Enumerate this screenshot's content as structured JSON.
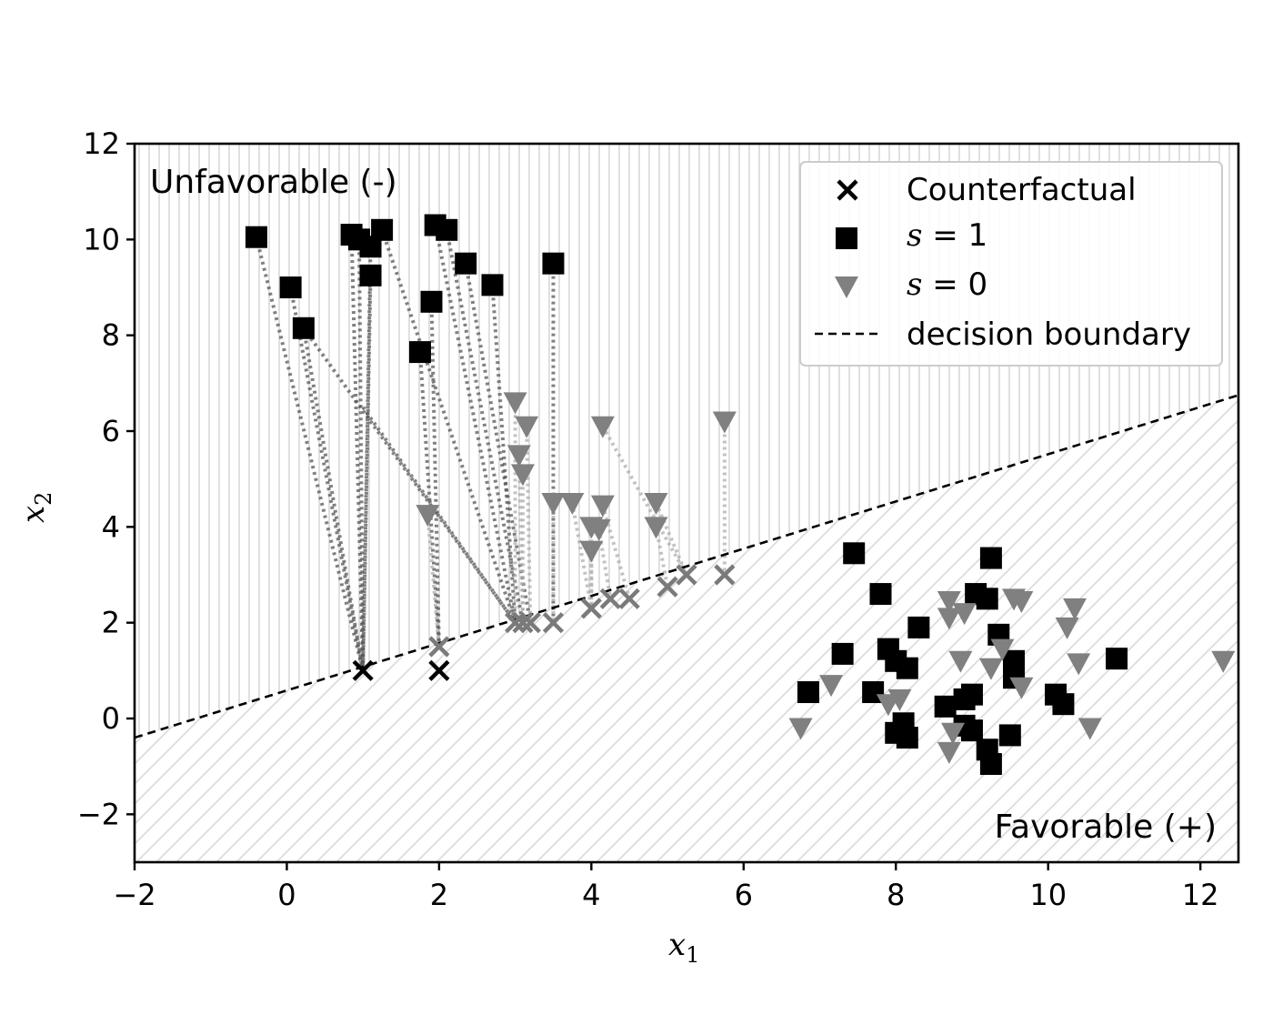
{
  "chart_data": {
    "type": "scatter",
    "xlabel": "x",
    "xlabel_sub": "1",
    "ylabel": "x",
    "ylabel_sub": "2",
    "xlim": [
      -2,
      12.5
    ],
    "ylim": [
      -3,
      12
    ],
    "xticks": [
      -2,
      0,
      2,
      4,
      6,
      8,
      10,
      12
    ],
    "yticks": [
      -2,
      0,
      2,
      4,
      6,
      8,
      10,
      12
    ],
    "xtick_labels": [
      "−2",
      "0",
      "2",
      "4",
      "6",
      "8",
      "10",
      "12"
    ],
    "ytick_labels": [
      "−2",
      "0",
      "2",
      "4",
      "6",
      "8",
      "10",
      "12"
    ],
    "grid": false,
    "legend_position": "top-right",
    "region_labels": {
      "unfavorable": "Unfavorable (-)",
      "favorable": "Favorable (+)"
    },
    "decision_boundary": {
      "name": "decision boundary",
      "x": [
        -2,
        12.5
      ],
      "y": [
        -0.4,
        6.75
      ]
    },
    "legend": [
      {
        "marker": "x",
        "text": "Counterfactual"
      },
      {
        "marker": "square",
        "text_pre": "s",
        "text_post": " = 1"
      },
      {
        "marker": "triangle",
        "text_pre": "s",
        "text_post": " = 0"
      },
      {
        "marker": "dashed",
        "text": "decision boundary"
      }
    ],
    "colors": {
      "s1": "#000000",
      "s0": "#808080",
      "boundary": "#000000",
      "hatch": "#d9d9d9"
    },
    "series": [
      {
        "name": "s = 1",
        "marker": "square",
        "points": [
          [
            -0.4,
            10.05
          ],
          [
            0.05,
            9.0
          ],
          [
            0.22,
            8.15
          ],
          [
            0.85,
            10.1
          ],
          [
            0.95,
            10.0
          ],
          [
            1.1,
            9.85
          ],
          [
            1.25,
            10.2
          ],
          [
            1.1,
            9.25
          ],
          [
            1.95,
            10.3
          ],
          [
            2.1,
            10.2
          ],
          [
            2.35,
            9.5
          ],
          [
            2.7,
            9.05
          ],
          [
            3.5,
            9.5
          ],
          [
            1.9,
            8.7
          ],
          [
            1.75,
            7.65
          ],
          [
            7.45,
            3.45
          ],
          [
            7.8,
            2.6
          ],
          [
            6.85,
            0.55
          ],
          [
            7.3,
            1.35
          ],
          [
            7.7,
            0.55
          ],
          [
            7.9,
            1.45
          ],
          [
            8.0,
            1.2
          ],
          [
            8.15,
            1.05
          ],
          [
            8.3,
            1.9
          ],
          [
            8.0,
            -0.3
          ],
          [
            8.15,
            -0.4
          ],
          [
            8.1,
            -0.1
          ],
          [
            8.65,
            0.25
          ],
          [
            8.9,
            0.4
          ],
          [
            9.0,
            0.5
          ],
          [
            8.9,
            -0.15
          ],
          [
            9.0,
            -0.25
          ],
          [
            9.05,
            2.6
          ],
          [
            9.2,
            2.5
          ],
          [
            9.25,
            3.35
          ],
          [
            9.2,
            -0.65
          ],
          [
            9.25,
            -0.95
          ],
          [
            9.35,
            1.75
          ],
          [
            9.55,
            1.2
          ],
          [
            9.55,
            0.85
          ],
          [
            9.5,
            -0.35
          ],
          [
            10.1,
            0.5
          ],
          [
            10.2,
            0.3
          ],
          [
            10.9,
            1.25
          ]
        ]
      },
      {
        "name": "s = 0",
        "marker": "triangle",
        "points": [
          [
            3.0,
            6.6
          ],
          [
            3.15,
            6.1
          ],
          [
            3.05,
            5.5
          ],
          [
            3.1,
            5.1
          ],
          [
            3.5,
            4.5
          ],
          [
            3.75,
            4.5
          ],
          [
            4.15,
            6.1
          ],
          [
            1.85,
            4.25
          ],
          [
            4.0,
            4.0
          ],
          [
            4.1,
            3.95
          ],
          [
            4.15,
            4.45
          ],
          [
            4.0,
            3.5
          ],
          [
            4.85,
            4.5
          ],
          [
            4.85,
            4.0
          ],
          [
            5.75,
            6.2
          ],
          [
            6.75,
            -0.2
          ],
          [
            7.15,
            0.7
          ],
          [
            7.9,
            0.3
          ],
          [
            8.05,
            0.4
          ],
          [
            8.7,
            2.45
          ],
          [
            8.7,
            2.1
          ],
          [
            8.9,
            2.2
          ],
          [
            8.75,
            -0.3
          ],
          [
            8.7,
            -0.7
          ],
          [
            8.85,
            1.2
          ],
          [
            9.25,
            1.05
          ],
          [
            9.4,
            1.45
          ],
          [
            9.55,
            2.5
          ],
          [
            9.65,
            2.45
          ],
          [
            9.65,
            0.65
          ],
          [
            10.25,
            1.9
          ],
          [
            10.35,
            2.3
          ],
          [
            10.4,
            1.15
          ],
          [
            10.55,
            -0.2
          ],
          [
            12.3,
            1.2
          ]
        ]
      },
      {
        "name": "Counterfactual",
        "marker": "x",
        "points": [
          [
            1.0,
            1.0
          ],
          [
            2.0,
            1.0
          ],
          [
            2.0,
            1.5
          ],
          [
            3.0,
            2.0
          ],
          [
            3.1,
            2.0
          ],
          [
            3.2,
            2.0
          ],
          [
            3.5,
            2.0
          ],
          [
            4.0,
            2.3
          ],
          [
            4.25,
            2.5
          ],
          [
            4.5,
            2.5
          ],
          [
            5.0,
            2.75
          ],
          [
            5.25,
            3.0
          ],
          [
            5.75,
            3.0
          ]
        ]
      }
    ],
    "paths": [
      {
        "group": "s1",
        "from": [
          -0.4,
          10.05
        ],
        "to": [
          1.0,
          1.0
        ]
      },
      {
        "group": "s1",
        "from": [
          0.05,
          9.0
        ],
        "to": [
          1.0,
          1.0
        ]
      },
      {
        "group": "s1",
        "from": [
          0.22,
          8.15
        ],
        "to": [
          1.0,
          1.0
        ]
      },
      {
        "group": "s1",
        "from": [
          0.22,
          8.15
        ],
        "to": [
          3.0,
          2.0
        ]
      },
      {
        "group": "s1",
        "from": [
          0.85,
          10.1
        ],
        "to": [
          1.0,
          1.0
        ]
      },
      {
        "group": "s1",
        "from": [
          0.95,
          10.0
        ],
        "to": [
          1.0,
          1.0
        ]
      },
      {
        "group": "s1",
        "from": [
          1.1,
          9.85
        ],
        "to": [
          1.0,
          1.0
        ]
      },
      {
        "group": "s1",
        "from": [
          1.1,
          9.25
        ],
        "to": [
          1.0,
          1.0
        ]
      },
      {
        "group": "s1",
        "from": [
          1.25,
          10.2
        ],
        "to": [
          3.0,
          2.0
        ]
      },
      {
        "group": "s1",
        "from": [
          1.95,
          10.3
        ],
        "to": [
          3.0,
          2.0
        ]
      },
      {
        "group": "s1",
        "from": [
          2.1,
          10.2
        ],
        "to": [
          3.1,
          2.0
        ]
      },
      {
        "group": "s1",
        "from": [
          2.35,
          9.5
        ],
        "to": [
          3.2,
          2.0
        ]
      },
      {
        "group": "s1",
        "from": [
          2.7,
          9.05
        ],
        "to": [
          3.0,
          2.0
        ]
      },
      {
        "group": "s1",
        "from": [
          3.5,
          9.5
        ],
        "to": [
          3.5,
          2.0
        ]
      },
      {
        "group": "s1",
        "from": [
          1.9,
          8.7
        ],
        "to": [
          2.0,
          1.5
        ]
      },
      {
        "group": "s1",
        "from": [
          1.75,
          7.65
        ],
        "to": [
          2.0,
          1.5
        ]
      },
      {
        "group": "s1",
        "from": [
          1.0,
          6.5
        ],
        "to": [
          3.0,
          2.0
        ]
      },
      {
        "group": "s0",
        "from": [
          3.0,
          6.6
        ],
        "to": [
          3.0,
          2.0
        ]
      },
      {
        "group": "s0",
        "from": [
          3.15,
          6.1
        ],
        "to": [
          3.2,
          2.0
        ]
      },
      {
        "group": "s0",
        "from": [
          3.05,
          5.5
        ],
        "to": [
          3.1,
          2.0
        ]
      },
      {
        "group": "s0",
        "from": [
          3.1,
          5.1
        ],
        "to": [
          3.1,
          2.0
        ]
      },
      {
        "group": "s0",
        "from": [
          3.5,
          4.5
        ],
        "to": [
          3.5,
          2.0
        ]
      },
      {
        "group": "s0",
        "from": [
          3.75,
          4.5
        ],
        "to": [
          4.0,
          2.3
        ]
      },
      {
        "group": "s0",
        "from": [
          4.15,
          6.1
        ],
        "to": [
          5.25,
          3.0
        ]
      },
      {
        "group": "s0",
        "from": [
          1.85,
          4.25
        ],
        "to": [
          2.0,
          1.5
        ]
      },
      {
        "group": "s0",
        "from": [
          4.0,
          4.0
        ],
        "to": [
          4.0,
          2.3
        ]
      },
      {
        "group": "s0",
        "from": [
          4.1,
          3.95
        ],
        "to": [
          4.25,
          2.5
        ]
      },
      {
        "group": "s0",
        "from": [
          4.15,
          4.45
        ],
        "to": [
          4.5,
          2.5
        ]
      },
      {
        "group": "s0",
        "from": [
          4.0,
          3.5
        ],
        "to": [
          4.0,
          2.3
        ]
      },
      {
        "group": "s0",
        "from": [
          4.85,
          4.5
        ],
        "to": [
          5.25,
          3.0
        ]
      },
      {
        "group": "s0",
        "from": [
          4.85,
          4.0
        ],
        "to": [
          5.0,
          2.75
        ]
      },
      {
        "group": "s0",
        "from": [
          5.75,
          6.2
        ],
        "to": [
          5.75,
          3.0
        ]
      }
    ]
  }
}
